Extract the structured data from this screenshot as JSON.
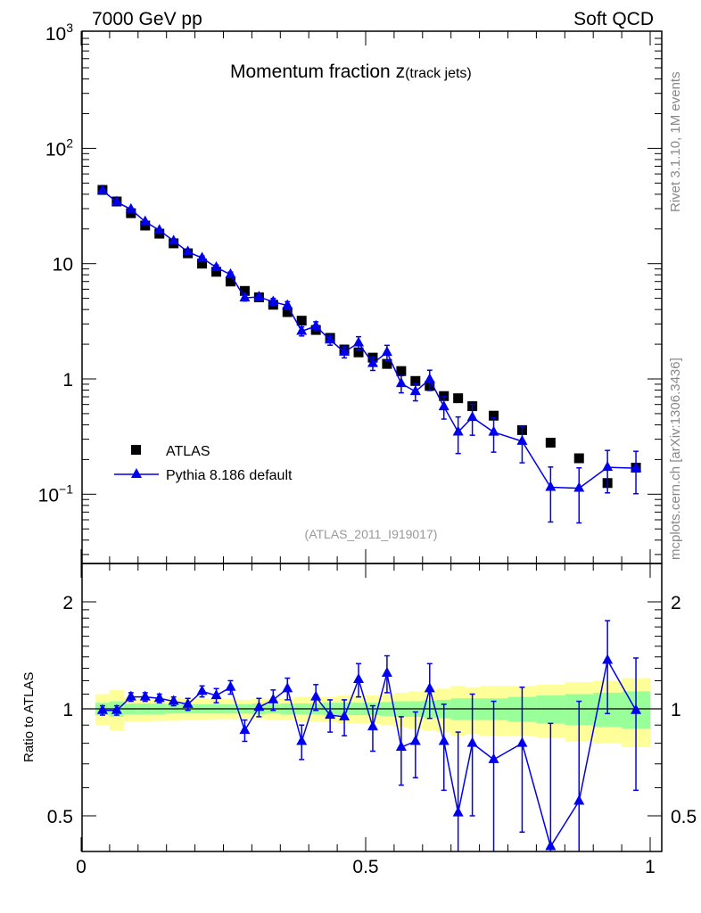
{
  "header": {
    "left": "7000 GeV pp",
    "right": "Soft QCD"
  },
  "side_labels": {
    "rivet": "Rivet 3.1.10,  1M events",
    "mcplots": "mcplots.cern.ch [arXiv:1306.3436]"
  },
  "chart_data": {
    "type": "scatter",
    "title_main": "Momentum fraction z",
    "title_sub": "(track jets)",
    "analysis_label": "(ATLAS_2011_I919017)",
    "ylabel_ratio": "Ratio to ATLAS",
    "xlim": [
      0,
      1
    ],
    "ylim_main": [
      0.025,
      1000
    ],
    "ylim_ratio": [
      0.4,
      2.56
    ],
    "y_scale": "log",
    "ratio_scale": "log",
    "x_ticks": [
      {
        "v": 0,
        "label": "0"
      },
      {
        "v": 0.5,
        "label": "0.5"
      },
      {
        "v": 1,
        "label": "1"
      }
    ],
    "y_ticks_main": [
      {
        "v": 1000,
        "base": "10",
        "exp": "3"
      },
      {
        "v": 100,
        "base": "10",
        "exp": "2"
      },
      {
        "v": 10,
        "base": "10",
        "exp": ""
      },
      {
        "v": 1,
        "base": "1",
        "exp": ""
      },
      {
        "v": 0.1,
        "base": "10",
        "exp": "−1"
      }
    ],
    "y_ticks_ratio": [
      {
        "v": 2,
        "label": "2"
      },
      {
        "v": 1,
        "label": "1"
      },
      {
        "v": 0.5,
        "label": "0.5"
      }
    ],
    "legend": {
      "placement": "bottom-left",
      "entries": [
        "ATLAS",
        "Pythia 8.186 default"
      ]
    },
    "colors": {
      "data": "#000000",
      "mc": "#0000ee",
      "stat_band": "#99ff99",
      "total_band": "#ffff99"
    },
    "x": [
      0.0375,
      0.0625,
      0.0875,
      0.1125,
      0.1375,
      0.1625,
      0.1875,
      0.2125,
      0.2375,
      0.2625,
      0.2875,
      0.3125,
      0.3375,
      0.3625,
      0.3875,
      0.4125,
      0.4375,
      0.4625,
      0.4875,
      0.5125,
      0.5375,
      0.5625,
      0.5875,
      0.6125,
      0.6375,
      0.6625,
      0.6875,
      0.725,
      0.775,
      0.825,
      0.875,
      0.925,
      0.975
    ],
    "x_halfwidth": [
      0.0125,
      0.0125,
      0.0125,
      0.0125,
      0.0125,
      0.0125,
      0.0125,
      0.0125,
      0.0125,
      0.0125,
      0.0125,
      0.0125,
      0.0125,
      0.0125,
      0.0125,
      0.0125,
      0.0125,
      0.0125,
      0.0125,
      0.0125,
      0.0125,
      0.0125,
      0.0125,
      0.0125,
      0.0125,
      0.0125,
      0.0125,
      0.025,
      0.025,
      0.025,
      0.025,
      0.025,
      0.025
    ],
    "series": [
      {
        "name": "ATLAS",
        "values": [
          43.6,
          34.6,
          27.4,
          21.4,
          18.2,
          15.0,
          12.3,
          10.0,
          8.5,
          7.0,
          5.8,
          5.1,
          4.4,
          3.8,
          3.2,
          2.66,
          2.27,
          1.8,
          1.7,
          1.53,
          1.35,
          1.17,
          0.96,
          0.87,
          0.71,
          0.68,
          0.58,
          0.48,
          0.36,
          0.28,
          0.205,
          0.125,
          0.17
        ],
        "stat_rel": [
          0.04,
          0.05,
          0.035,
          0.035,
          0.035,
          0.03,
          0.03,
          0.03,
          0.03,
          0.03,
          0.03,
          0.035,
          0.03,
          0.035,
          0.035,
          0.035,
          0.04,
          0.04,
          0.04,
          0.04,
          0.045,
          0.05,
          0.05,
          0.055,
          0.06,
          0.07,
          0.07,
          0.07,
          0.08,
          0.09,
          0.1,
          0.11,
          0.12
        ],
        "total_rel": [
          0.1,
          0.13,
          0.08,
          0.08,
          0.075,
          0.075,
          0.07,
          0.07,
          0.065,
          0.065,
          0.06,
          0.065,
          0.07,
          0.07,
          0.08,
          0.08,
          0.08,
          0.09,
          0.09,
          0.09,
          0.1,
          0.11,
          0.12,
          0.13,
          0.14,
          0.16,
          0.15,
          0.16,
          0.16,
          0.17,
          0.19,
          0.2,
          0.22
        ]
      },
      {
        "name": "Pythia 8.186 default",
        "ratio": [
          0.99,
          0.99,
          1.08,
          1.08,
          1.07,
          1.05,
          1.03,
          1.12,
          1.09,
          1.15,
          0.87,
          1.01,
          1.06,
          1.14,
          0.81,
          1.08,
          0.96,
          0.95,
          1.21,
          0.89,
          1.26,
          0.78,
          0.81,
          1.14,
          0.81,
          0.51,
          0.8,
          0.72,
          0.8,
          0.41,
          0.55,
          1.37,
          0.99
        ],
        "err_rel": [
          0.03,
          0.03,
          0.03,
          0.03,
          0.03,
          0.03,
          0.04,
          0.04,
          0.05,
          0.05,
          0.06,
          0.06,
          0.07,
          0.08,
          0.09,
          0.09,
          0.1,
          0.11,
          0.13,
          0.13,
          0.15,
          0.17,
          0.17,
          0.2,
          0.22,
          0.35,
          0.3,
          0.33,
          0.35,
          0.5,
          0.5,
          0.4,
          0.4
        ]
      }
    ]
  }
}
